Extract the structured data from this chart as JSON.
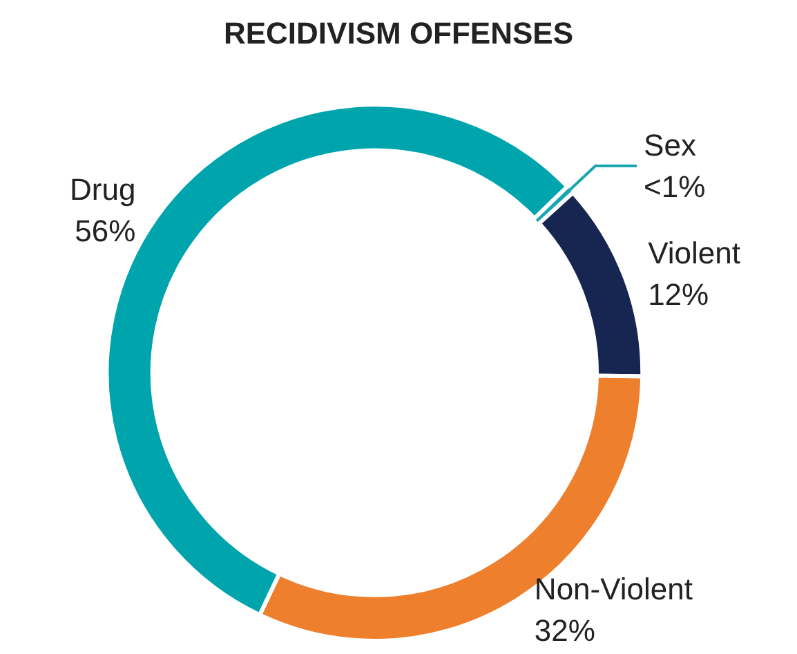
{
  "chart_data": {
    "type": "donut",
    "title": "RECIDIVISM OFFENSES",
    "categories": [
      "Sex",
      "Violent",
      "Non-Violent",
      "Drug"
    ],
    "values": [
      0.5,
      12,
      32,
      56
    ],
    "value_labels": [
      "<1%",
      "12%",
      "32%",
      "56%"
    ],
    "colors": [
      "#1aa6b0",
      "#172651",
      "#ee7f2d",
      "#00a4ad"
    ],
    "legend": false
  }
}
